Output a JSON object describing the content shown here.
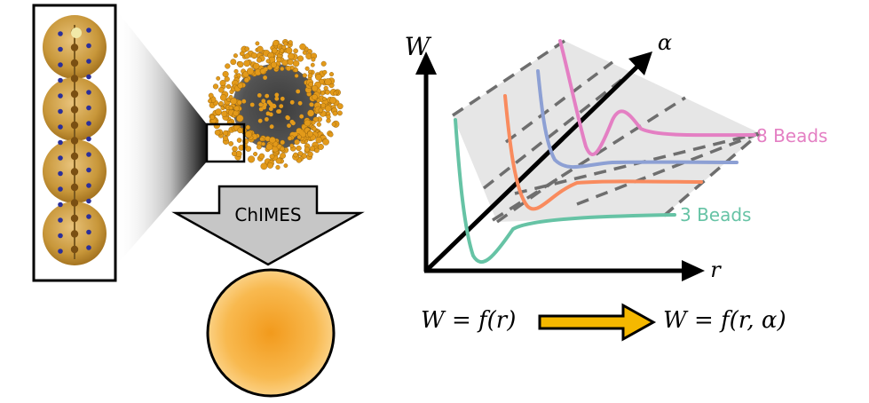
{
  "coarse_graining": {
    "arrow_label": "ChIMES"
  },
  "potential_plot": {
    "y_axis_label": "W",
    "x_axis_label": "r",
    "depth_axis_label": "α",
    "curves": [
      {
        "label": "",
        "color": "#e47fc3"
      },
      {
        "label": "",
        "color": "#8da0d4"
      },
      {
        "label": "",
        "color": "#f98b5e"
      },
      {
        "label": "",
        "color": "#66c3a5"
      }
    ],
    "curve_labels": {
      "top": "8 Beads",
      "bottom": "3 Beads"
    },
    "label_colors": {
      "top": "#e47fc3",
      "bottom": "#66c3a5"
    },
    "surface_color": "#e6e6e6"
  },
  "equations": {
    "left": "W = f(r)",
    "right": "W = f(r, α)",
    "arrow_color": "#f5b800"
  },
  "colors": {
    "bead": "#c89a3a",
    "cg_sphere_center": "#f39a1d",
    "cg_sphere_edge": "#fbd58a",
    "atom": "#e39a1a"
  }
}
